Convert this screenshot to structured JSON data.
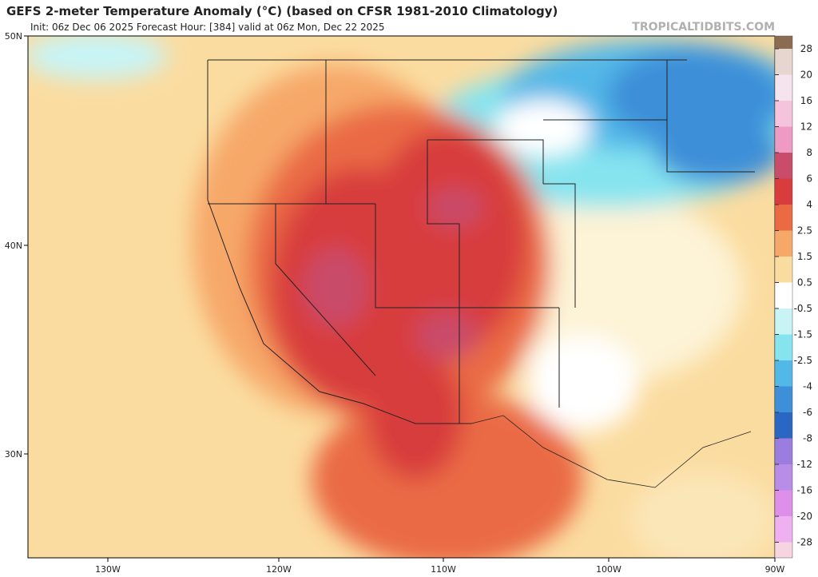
{
  "header": {
    "title": "GEFS 2-meter Temperature Anomaly (°C) (based on CFSR 1981-2010 Climatology)",
    "subtitle": "Init: 06z Dec 06 2025   Forecast Hour: [384]   valid at 06z Mon, Dec 22 2025",
    "source": "TROPICALTIDBITS.COM"
  },
  "axes": {
    "lat_labels": [
      "50N",
      "40N",
      "30N"
    ],
    "lon_labels": [
      "130W",
      "120W",
      "110W",
      "100W",
      "90W"
    ]
  },
  "colorbar": {
    "labels": [
      "28",
      "20",
      "16",
      "12",
      "8",
      "6",
      "4",
      "2.5",
      "1.5",
      "0.5",
      "-0.5",
      "-1.5",
      "-2.5",
      "-4",
      "-6",
      "-8",
      "-12",
      "-16",
      "-20",
      "-28"
    ],
    "colors": [
      "#8c6c50",
      "#e6d6cf",
      "#f5e4ee",
      "#f6c3dd",
      "#ee9ac4",
      "#c94c6a",
      "#d83c3c",
      "#ea6a44",
      "#f6a869",
      "#fbdca0",
      "#ffffff",
      "#c8f4f6",
      "#86e4ef",
      "#52b8e8",
      "#3d8fd8",
      "#2a67c2",
      "#9b7de0",
      "#b88de8",
      "#dd8fea",
      "#eeb0f0",
      "#f6d4e0"
    ]
  }
}
